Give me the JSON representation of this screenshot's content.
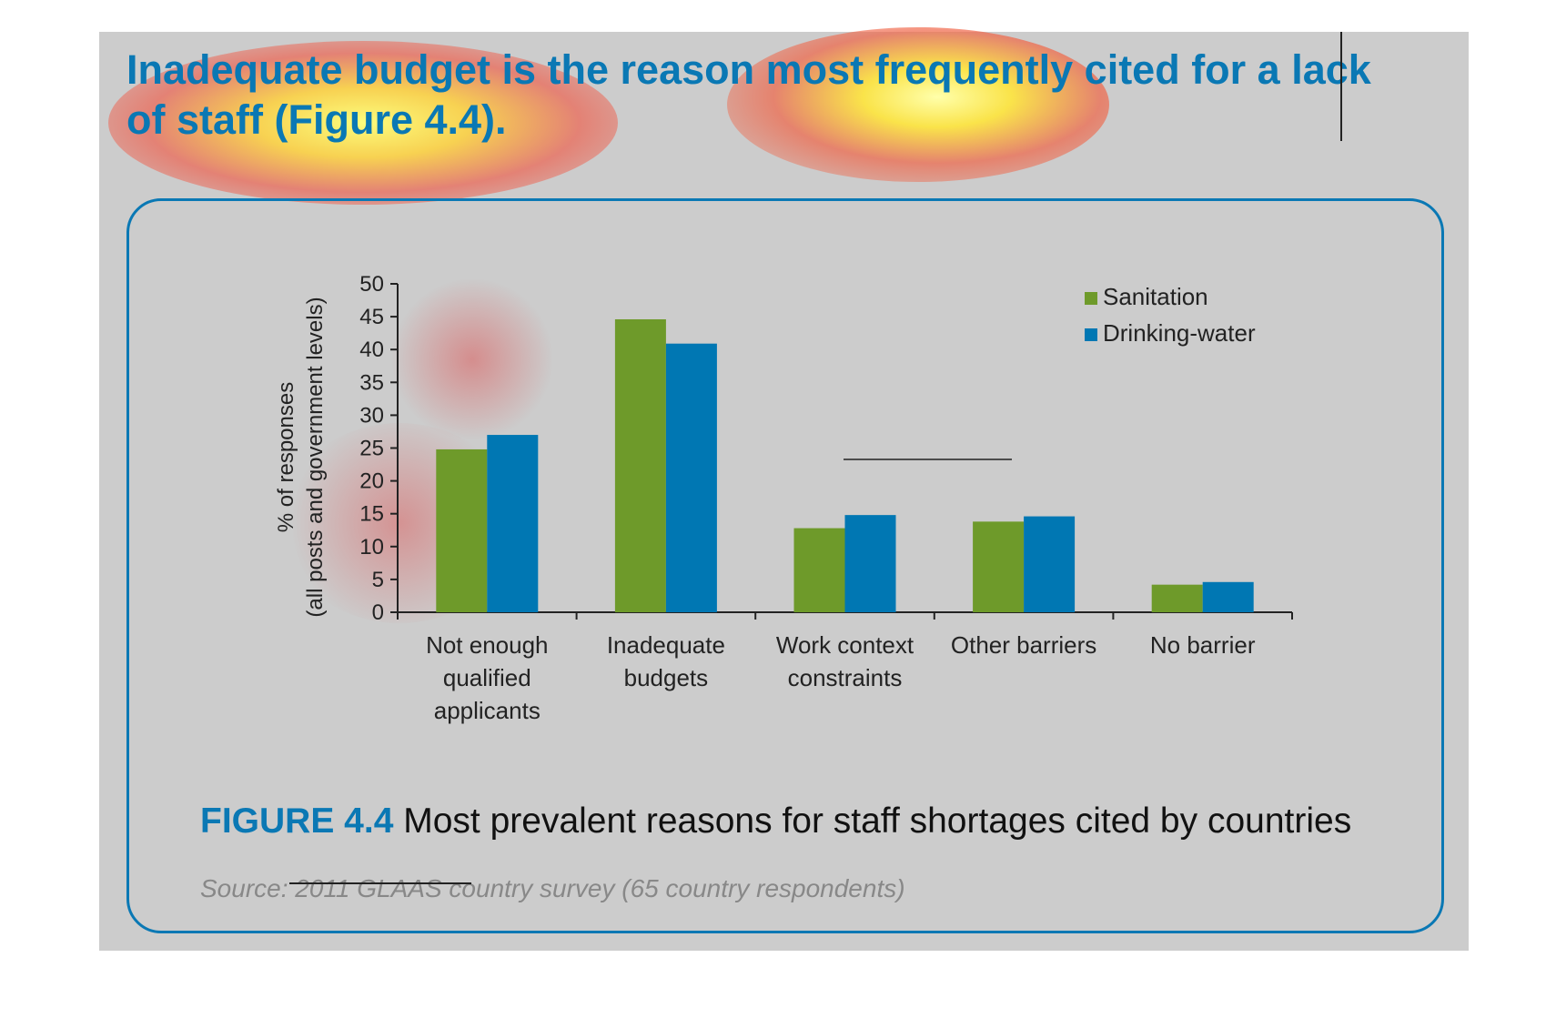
{
  "headline": "Inadequate budget is the reason most frequently cited for a lack of staff (Figure 4.4).",
  "figure": {
    "label": "FIGURE 4.4",
    "title": "Most prevalent reasons for staff shortages cited by countries",
    "source": "Source: 2011 GLAAS country survey (65 country respondents)"
  },
  "colors": {
    "accent": "#0a78b4",
    "sanitation": "#6e9a2a",
    "drinking_water": "#0077b3",
    "panel": "#cccccc"
  },
  "chart_data": {
    "type": "bar",
    "categories": [
      [
        "Not enough",
        "qualified",
        "applicants"
      ],
      [
        "Inadequate",
        "budgets"
      ],
      [
        "Work context",
        "constraints"
      ],
      [
        "Other barriers"
      ],
      [
        "No barrier"
      ]
    ],
    "series": [
      {
        "name": "Sanitation",
        "values": [
          24.8,
          44.6,
          12.8,
          13.8,
          4.2
        ]
      },
      {
        "name": "Drinking-water",
        "values": [
          27.0,
          40.9,
          14.8,
          14.6,
          4.6
        ]
      }
    ],
    "ylabel_lines": [
      "% of responses",
      "(all posts and government levels)"
    ],
    "ylim": [
      0,
      50
    ],
    "yticks": [
      0,
      5,
      10,
      15,
      20,
      25,
      30,
      35,
      40,
      45,
      50
    ],
    "legend_position": "top-right",
    "grid": false
  }
}
